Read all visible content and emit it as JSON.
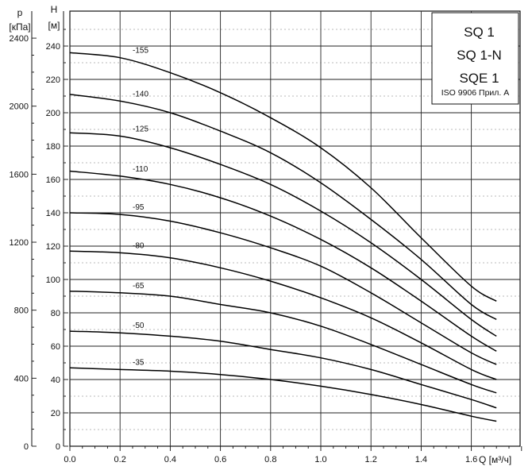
{
  "chart_data": {
    "type": "line",
    "xlabel": "Q [м³/ч]",
    "ylabel_left": "H\n[м]",
    "ylabel_outer": "p\n[кПа]",
    "xlim": [
      0,
      1.8
    ],
    "ylim": [
      0,
      250
    ],
    "y_outer_lim": [
      0,
      2450
    ],
    "x_ticks": [
      "0.0",
      "0.2",
      "0.4",
      "0.6",
      "0.8",
      "1.0",
      "1.2",
      "1.4",
      "1.6"
    ],
    "y_ticks": [
      "0",
      "20",
      "40",
      "60",
      "80",
      "100",
      "120",
      "140",
      "160",
      "180",
      "200",
      "220",
      "240"
    ],
    "y_outer_ticks": [
      "0",
      "400",
      "800",
      "1200",
      "1600",
      "2000",
      "2400"
    ],
    "grid": true,
    "legend": {
      "lines": [
        "SQ 1",
        "SQ 1-N",
        "SQE 1"
      ],
      "note": "ISO 9906 Прил. A",
      "placement": "top-right"
    },
    "x": [
      0.0,
      0.2,
      0.4,
      0.6,
      0.8,
      1.0,
      1.2,
      1.4,
      1.6,
      1.7
    ],
    "series": [
      {
        "name": "-155",
        "values": [
          236,
          233,
          224,
          212,
          197,
          179,
          155,
          125,
          96,
          87
        ]
      },
      {
        "name": "-140",
        "values": [
          211,
          207,
          200,
          189,
          176,
          158,
          136,
          112,
          85,
          76
        ]
      },
      {
        "name": "-125",
        "values": [
          188,
          186,
          179,
          169,
          157,
          141,
          122,
          100,
          76,
          66
        ]
      },
      {
        "name": "-110",
        "values": [
          165,
          162,
          157,
          149,
          138,
          124,
          107,
          87,
          66,
          57
        ]
      },
      {
        "name": "-95",
        "values": [
          140,
          139,
          135,
          128,
          119,
          108,
          92,
          74,
          56,
          49
        ]
      },
      {
        "name": "-80",
        "values": [
          117,
          116,
          113,
          107,
          99,
          89,
          77,
          62,
          46,
          40
        ]
      },
      {
        "name": "-65",
        "values": [
          93,
          92,
          90,
          85,
          80,
          72,
          61,
          49,
          37,
          32
        ]
      },
      {
        "name": "-50",
        "values": [
          69,
          68,
          66,
          63,
          58,
          53,
          46,
          37,
          28,
          23
        ]
      },
      {
        "name": "-35",
        "values": [
          47,
          46,
          45,
          43,
          40,
          36,
          31,
          25,
          18,
          15
        ]
      }
    ]
  }
}
